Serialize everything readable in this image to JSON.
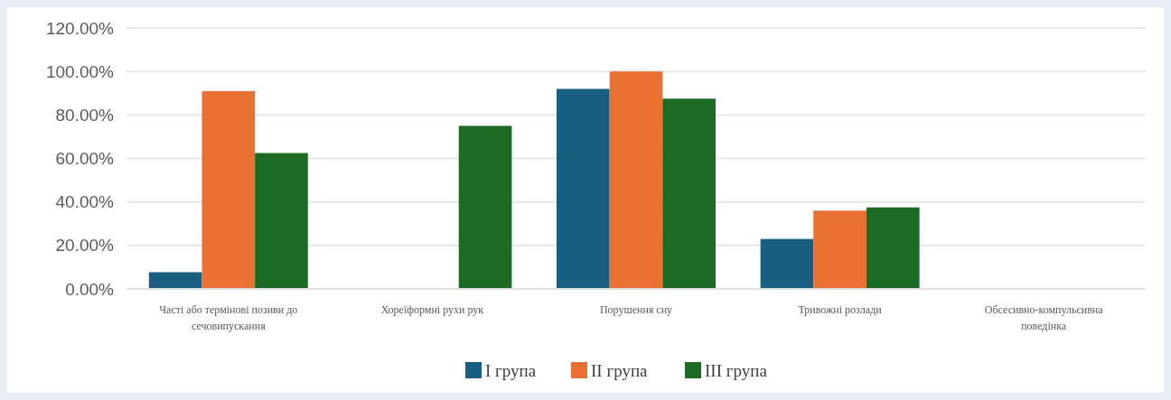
{
  "chart_data": {
    "type": "bar",
    "categories": [
      "Часті або термінові позиви до сечовипускання",
      "Хореїформні рухи рук",
      "Порушення сну",
      "Тривожні розлади",
      "Обсесивно-компульсивна поведінка"
    ],
    "series": [
      {
        "name": "I група",
        "color": "#185f82",
        "values": [
          7.7,
          0,
          92,
          23,
          0
        ]
      },
      {
        "name": "II група",
        "color": "#e97132",
        "values": [
          91,
          0,
          100,
          36,
          0
        ]
      },
      {
        "name": "III група",
        "color": "#1c6b24",
        "values": [
          62.5,
          75,
          87.5,
          37.5,
          0
        ]
      }
    ],
    "ylim": [
      0,
      120
    ],
    "yticks": [
      {
        "value": 0,
        "label": "0.00%"
      },
      {
        "value": 20,
        "label": "20.00%"
      },
      {
        "value": 40,
        "label": "40.00%"
      },
      {
        "value": 60,
        "label": "60.00%"
      },
      {
        "value": 80,
        "label": "80.00%"
      },
      {
        "value": 100,
        "label": "100.00%"
      },
      {
        "value": 120,
        "label": "120.00%"
      }
    ],
    "grid": "y",
    "legend": "bottom"
  }
}
